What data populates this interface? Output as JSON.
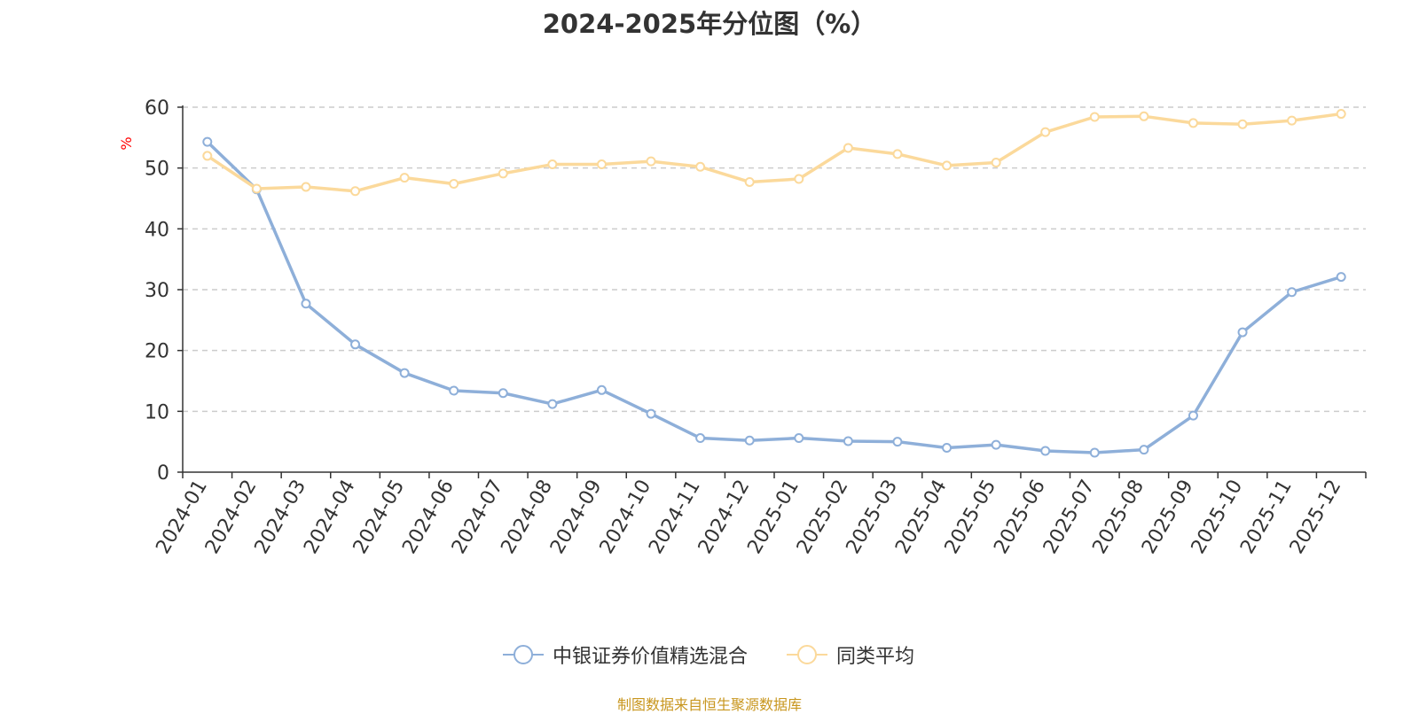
{
  "chart_data": {
    "type": "line",
    "title": "2024-2025年分位图（%）",
    "ylabel": "%",
    "xlabel": "",
    "ylim": [
      0,
      60
    ],
    "yticks": [
      0,
      10,
      20,
      30,
      40,
      50,
      60
    ],
    "grid": true,
    "legend_position": "bottom-center",
    "categories": [
      "2024-01",
      "2024-02",
      "2024-03",
      "2024-04",
      "2024-05",
      "2024-06",
      "2024-07",
      "2024-08",
      "2024-09",
      "2024-10",
      "2024-11",
      "2024-12",
      "2025-01",
      "2025-02",
      "2025-03",
      "2025-04",
      "2025-05",
      "2025-06",
      "2025-07",
      "2025-08",
      "2025-09",
      "2025-10",
      "2025-11",
      "2025-12"
    ],
    "series": [
      {
        "name": "中银证券价值精选混合",
        "color": "#8eafd9",
        "values": [
          54.3,
          46.5,
          27.7,
          21.0,
          16.3,
          13.4,
          13.0,
          11.2,
          13.5,
          9.6,
          5.6,
          5.2,
          5.6,
          5.1,
          5.0,
          4.0,
          4.5,
          3.5,
          3.2,
          3.7,
          9.3,
          23.0,
          29.6,
          32.1
        ]
      },
      {
        "name": "同类平均",
        "color": "#fbd99b",
        "values": [
          52.0,
          46.6,
          46.9,
          46.2,
          48.4,
          47.4,
          49.1,
          50.6,
          50.6,
          51.1,
          50.2,
          47.7,
          48.2,
          53.3,
          52.3,
          50.4,
          50.9,
          55.9,
          58.4,
          58.5,
          57.4,
          57.2,
          57.8,
          58.9
        ]
      }
    ]
  },
  "source_note": "制图数据来自恒生聚源数据库",
  "colors": {
    "axis": "#333333",
    "grid": "#cccccc",
    "ylabel": "#ff0000",
    "source": "#c8961e"
  }
}
